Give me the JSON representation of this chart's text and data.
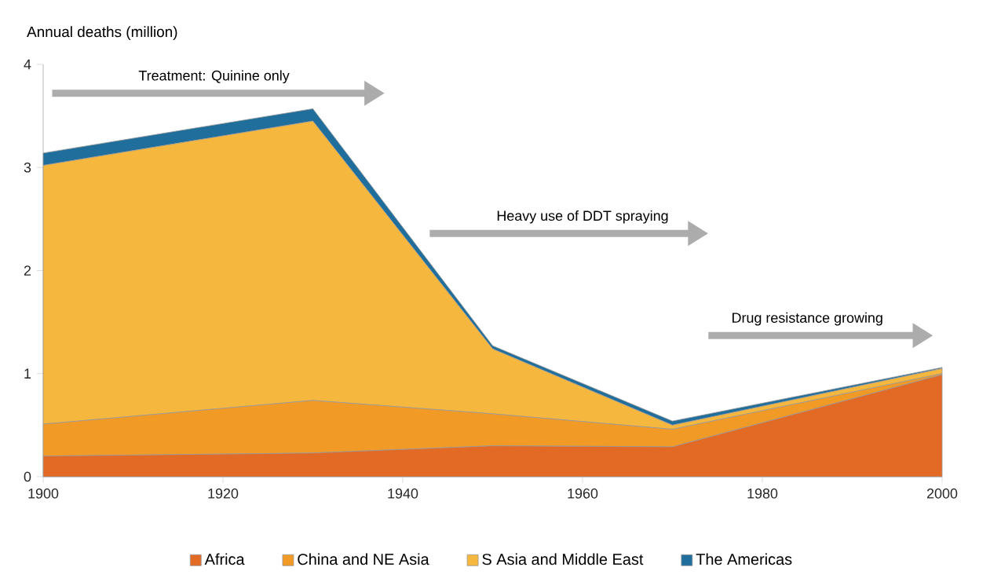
{
  "chart_data": {
    "type": "area",
    "stacked": true,
    "ylabel": "Annual deaths (million)",
    "x": [
      1900,
      1930,
      1950,
      1970,
      2000
    ],
    "xlim": [
      1900,
      2000
    ],
    "xticks": [
      1900,
      1920,
      1940,
      1960,
      1980,
      2000
    ],
    "ylim": [
      0,
      4
    ],
    "yticks": [
      0,
      1,
      2,
      3,
      4
    ],
    "grid": false,
    "legend": "bottom",
    "series": [
      {
        "name": "Africa",
        "color": "#e36a25",
        "values": [
          0.2,
          0.23,
          0.3,
          0.29,
          0.99
        ]
      },
      {
        "name": "China and NE Asia",
        "color": "#f29a26",
        "values": [
          0.31,
          0.51,
          0.31,
          0.17,
          0.01
        ]
      },
      {
        "name": "S Asia and Middle East",
        "color": "#f5b73d",
        "values": [
          2.51,
          2.71,
          0.63,
          0.04,
          0.05
        ]
      },
      {
        "name": "The Americas",
        "color": "#1f6e9c",
        "values": [
          0.12,
          0.12,
          0.03,
          0.04,
          0.01
        ]
      }
    ],
    "annotations": [
      "Treatment: Quinine only",
      "Heavy use of DDT spraying",
      "Drug resistance growing"
    ]
  }
}
